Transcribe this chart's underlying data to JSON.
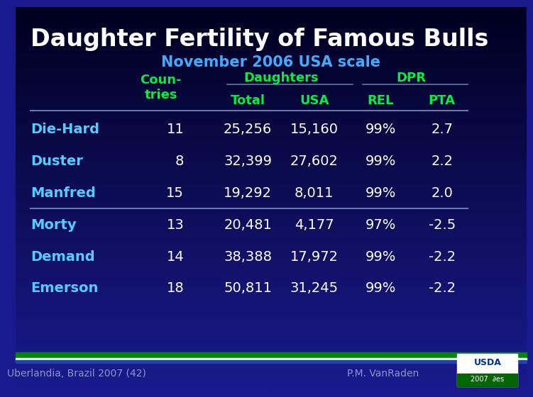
{
  "title": "Daughter Fertility of Famous Bulls",
  "subtitle": "November 2006 USA scale",
  "title_color": "#ffffff",
  "subtitle_color": "#44aaff",
  "bg_top_color": "#000020",
  "bg_bottom_color": "#1a1a8e",
  "header_color": "#00ee44",
  "data_color": "#ffffff",
  "bull_name_color": "#55ccff",
  "line_color": "#6677aa",
  "rows": [
    [
      "Die-Hard",
      "11",
      "25,256",
      "15,160",
      "99%",
      "2.7"
    ],
    [
      "Duster",
      "8",
      "32,399",
      "27,602",
      "99%",
      "2.2"
    ],
    [
      "Manfred",
      "15",
      "19,292",
      "8,011",
      "99%",
      "2.0"
    ],
    [
      "Morty",
      "13",
      "20,481",
      "4,177",
      "97%",
      "-2.5"
    ],
    [
      "Demand",
      "14",
      "38,388",
      "17,972",
      "99%",
      "-2.2"
    ],
    [
      "Emerson",
      "18",
      "50,811",
      "31,245",
      "99%",
      "-2.2"
    ]
  ],
  "divider_after_row": 2,
  "footer_left": "Uberlandia, Brazil 2007 (42)",
  "footer_right": "P.M. VanRaden",
  "footer_color": "#8899cc",
  "footer_bg": "#1a1a8e",
  "green_bar_color": "#008800",
  "white_bar_color": "#ffffff",
  "blue_bar_color": "#2244aa"
}
